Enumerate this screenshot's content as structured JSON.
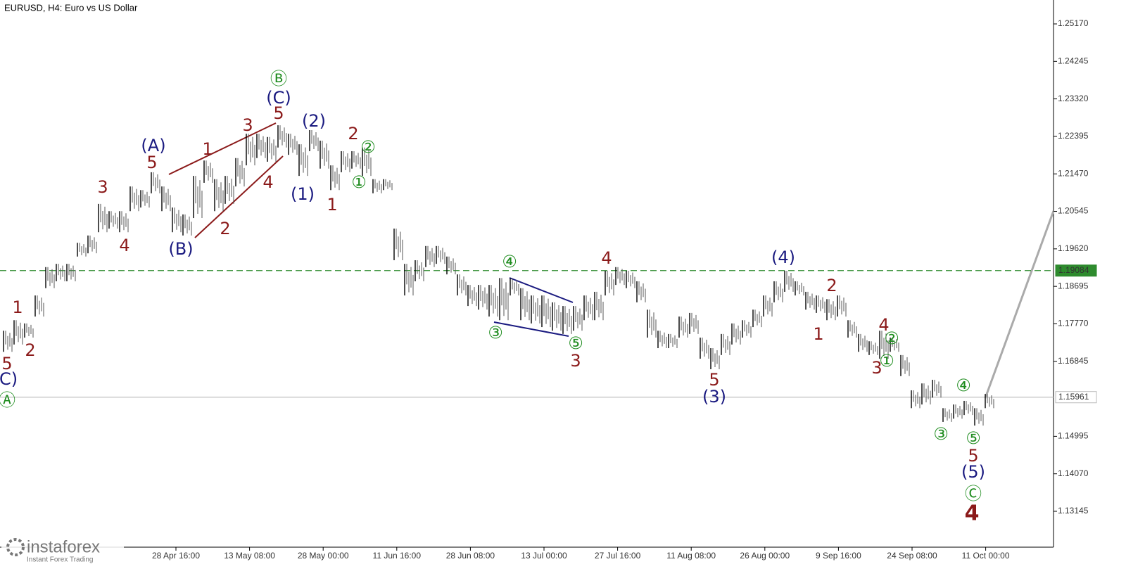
{
  "chart_data": {
    "type": "range_bar",
    "title": "EURUSD, H4:  Euro vs US Dollar",
    "color": "#000000",
    "high": [
      1.176,
      1.1786,
      1.1778,
      1.1847,
      1.1917,
      1.1925,
      1.1925,
      1.1977,
      1.1995,
      1.2073,
      1.2055,
      1.2055,
      1.2116,
      1.2107,
      1.2151,
      1.2116,
      1.2064,
      1.2047,
      1.2142,
      1.218,
      1.2134,
      1.2142,
      1.2186,
      1.2246,
      1.2246,
      1.2238,
      1.2267,
      1.2246,
      1.222,
      1.2255,
      1.2229,
      1.2168,
      1.2203,
      1.2203,
      1.2212,
      1.2134,
      1.2134,
      1.2012,
      1.1925,
      1.1934,
      1.1969,
      1.1969,
      1.1943,
      1.1899,
      1.1873,
      1.1873,
      1.1873,
      1.189,
      1.189,
      1.1865,
      1.1847,
      1.1847,
      1.183,
      1.1821,
      1.1821,
      1.1847,
      1.1856,
      1.1908,
      1.1917,
      1.1908,
      1.1882,
      1.1812,
      1.176,
      1.1752,
      1.1795,
      1.1804,
      1.1743,
      1.1717,
      1.1752,
      1.1778,
      1.1786,
      1.1812,
      1.1847,
      1.1882,
      1.1908,
      1.1882,
      1.1856,
      1.1847,
      1.1838,
      1.1847,
      1.1786,
      1.1752,
      1.1734,
      1.176,
      1.1743,
      1.17,
      1.1613,
      1.163,
      1.1639,
      1.1569,
      1.1578,
      1.1587,
      1.1569,
      1.1604
    ],
    "low": [
      1.1708,
      1.1726,
      1.1743,
      1.1795,
      1.1865,
      1.1882,
      1.1882,
      1.1943,
      1.1951,
      1.2003,
      1.2012,
      1.2003,
      1.2055,
      1.2064,
      1.2099,
      1.2055,
      1.2003,
      1.1995,
      1.2038,
      1.2125,
      1.2055,
      1.2073,
      1.2116,
      1.2168,
      1.2186,
      1.2177,
      1.2212,
      1.2194,
      1.2142,
      1.2203,
      1.216,
      1.2107,
      1.2151,
      1.216,
      1.2142,
      1.2099,
      1.2107,
      1.1934,
      1.1847,
      1.1882,
      1.1917,
      1.1925,
      1.1899,
      1.1847,
      1.1821,
      1.1812,
      1.1795,
      1.1786,
      1.1847,
      1.1786,
      1.1778,
      1.1769,
      1.176,
      1.1752,
      1.176,
      1.1786,
      1.1786,
      1.1847,
      1.1873,
      1.1865,
      1.183,
      1.1743,
      1.1717,
      1.1717,
      1.1743,
      1.1752,
      1.1691,
      1.1665,
      1.17,
      1.1726,
      1.1743,
      1.1769,
      1.1795,
      1.183,
      1.1856,
      1.1847,
      1.1812,
      1.1804,
      1.1786,
      1.1795,
      1.1743,
      1.1708,
      1.17,
      1.1691,
      1.1708,
      1.1648,
      1.1569,
      1.1578,
      1.1595,
      1.1535,
      1.1543,
      1.1552,
      1.1526,
      1.1569
    ],
    "ylim": [
      1.1226,
      1.2576
    ],
    "yticks": [
      {
        "value": 1.2517,
        "label": "1.25170"
      },
      {
        "value": 1.24245,
        "label": "1.24245"
      },
      {
        "value": 1.2332,
        "label": "1.23320"
      },
      {
        "value": 1.22395,
        "label": "1.22395"
      },
      {
        "value": 1.2147,
        "label": "1.21470"
      },
      {
        "value": 1.20545,
        "label": "1.20545"
      },
      {
        "value": 1.1962,
        "label": "1.19620"
      },
      {
        "value": 1.18695,
        "label": "1.18695"
      },
      {
        "value": 1.1777,
        "label": "1.17770"
      },
      {
        "value": 1.16845,
        "label": "1.16845"
      },
      {
        "value": 1.14995,
        "label": "1.14995"
      },
      {
        "value": 1.1407,
        "label": "1.14070"
      },
      {
        "value": 1.13145,
        "label": "1.13145"
      }
    ],
    "x_labels": [
      "28 Apr 16:00",
      "13 May 08:00",
      "28 May 00:00",
      "11 Jun 16:00",
      "28 Jun 08:00",
      "13 Jul 00:00",
      "27 Jul 16:00",
      "11 Aug 08:00",
      "26 Aug 00:00",
      "9 Sep 16:00",
      "24 Sep 08:00",
      "11 Oct 00:00"
    ],
    "levels": [
      {
        "value": 1.19084,
        "label": "1.19084",
        "color": "#2e8b2e",
        "style": "dashed"
      },
      {
        "value": 1.15961,
        "label": "1.15961",
        "color": "#c0c0c0",
        "style": "solid"
      }
    ],
    "wave_labels": [
      {
        "text": "5",
        "color": "#8b1a1a"
      },
      {
        "text": "C)",
        "color": "#1a1a80"
      },
      {
        "text": "Ⓐ",
        "color": "#1e8c1e"
      },
      {
        "text": "1",
        "color": "#8b1a1a"
      },
      {
        "text": "2",
        "color": "#8b1a1a"
      },
      {
        "text": "3",
        "color": "#8b1a1a"
      },
      {
        "text": "4",
        "color": "#8b1a1a"
      },
      {
        "text": "(A)",
        "color": "#1a1a80"
      },
      {
        "text": "5",
        "color": "#8b1a1a"
      },
      {
        "text": "(B)",
        "color": "#1a1a80"
      },
      {
        "text": "1",
        "color": "#8b1a1a"
      },
      {
        "text": "2",
        "color": "#8b1a1a"
      },
      {
        "text": "3",
        "color": "#8b1a1a"
      },
      {
        "text": "4",
        "color": "#8b1a1a"
      },
      {
        "text": "Ⓑ",
        "color": "#1e8c1e"
      },
      {
        "text": "(C)",
        "color": "#1a1a80"
      },
      {
        "text": "5",
        "color": "#8b1a1a"
      },
      {
        "text": "(2)",
        "color": "#1a1a80"
      },
      {
        "text": "(1)",
        "color": "#1a1a80"
      },
      {
        "text": "1",
        "color": "#8b1a1a"
      },
      {
        "text": "2",
        "color": "#8b1a1a"
      },
      {
        "text": "②",
        "color": "#1e8c1e"
      },
      {
        "text": "①",
        "color": "#1e8c1e"
      },
      {
        "text": "④",
        "color": "#1e8c1e"
      },
      {
        "text": "③",
        "color": "#1e8c1e"
      },
      {
        "text": "⑤",
        "color": "#1e8c1e"
      },
      {
        "text": "3",
        "color": "#8b1a1a"
      },
      {
        "text": "4",
        "color": "#8b1a1a"
      },
      {
        "text": "(4)",
        "color": "#1a1a80"
      },
      {
        "text": "5",
        "color": "#8b1a1a"
      },
      {
        "text": "(3)",
        "color": "#1a1a80"
      },
      {
        "text": "2",
        "color": "#8b1a1a"
      },
      {
        "text": "1",
        "color": "#8b1a1a"
      },
      {
        "text": "4",
        "color": "#8b1a1a"
      },
      {
        "text": "②",
        "color": "#1e8c1e"
      },
      {
        "text": "①",
        "color": "#1e8c1e"
      },
      {
        "text": "3",
        "color": "#8b1a1a"
      },
      {
        "text": "③",
        "color": "#1e8c1e"
      },
      {
        "text": "④",
        "color": "#1e8c1e"
      },
      {
        "text": "⑤",
        "color": "#1e8c1e"
      },
      {
        "text": "5",
        "color": "#8b1a1a"
      },
      {
        "text": "(5)",
        "color": "#1a1a80"
      },
      {
        "text": "Ⓒ",
        "color": "#1e8c1e"
      },
      {
        "text": "4",
        "color": "#8b1a1a"
      }
    ]
  },
  "logo": {
    "name": "instaforex",
    "tagline": "Instant Forex Trading"
  }
}
